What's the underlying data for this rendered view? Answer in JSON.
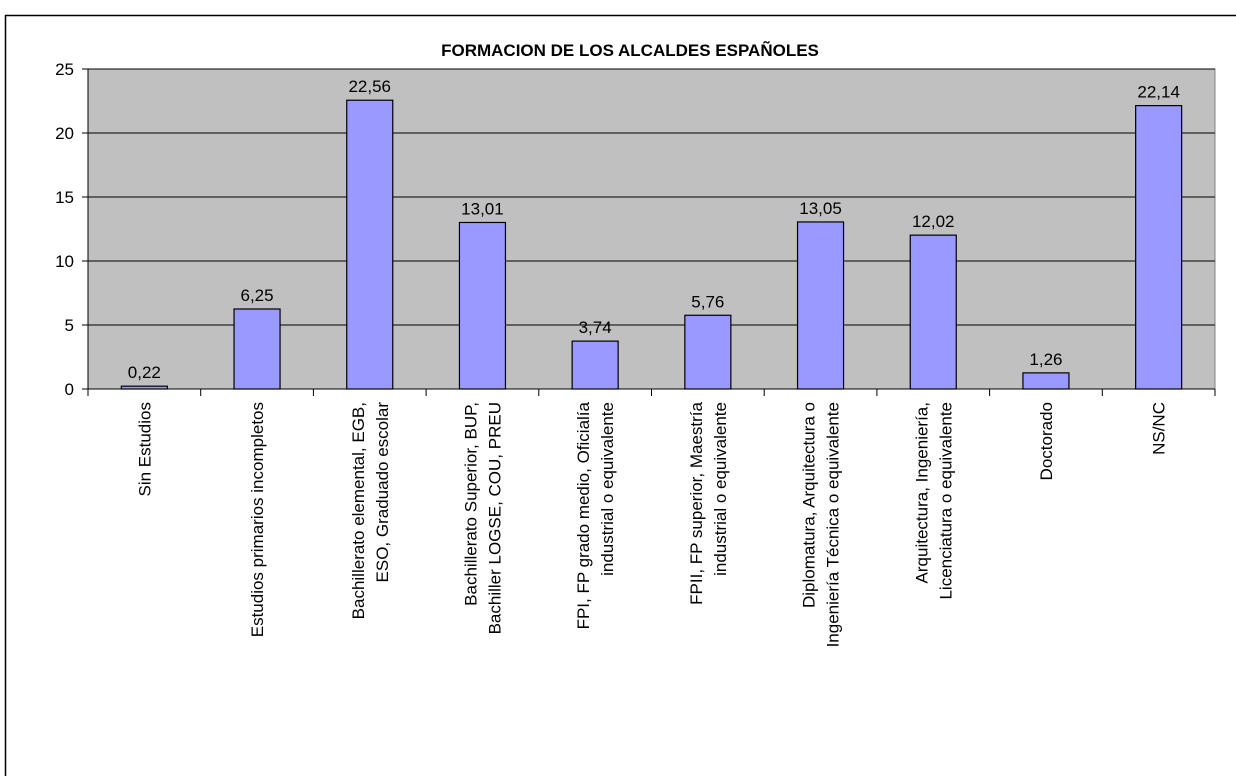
{
  "chart_data": {
    "type": "bar",
    "title": "FORMACION DE LOS ALCALDES ESPAÑOLES",
    "categories": [
      "Sin Estudios",
      "Estudios primarios incompletos",
      "Bachillerato elemental, EGB,\nESO, Graduado escolar",
      "Bachillerato Superior,    BUP,\nBachiller LOGSE, COU, PREU",
      "FPI, FP grado medio, Oficialía\nindustrial o equivalente",
      "FPII, FP superior, Maestría\nindustrial o equivalente",
      "Diplomatura, Arquitectura o\nIngeniería Técnica o equivalente",
      "Arquitectura, Ingeniería,\nLicenciatura o equivalente",
      "Doctorado",
      "NS/NC"
    ],
    "values": [
      0.22,
      6.25,
      22.56,
      13.01,
      3.74,
      5.76,
      13.05,
      12.02,
      1.26,
      22.14
    ],
    "value_labels": [
      "0,22",
      "6,25",
      "22,56",
      "13,01",
      "3,74",
      "5,76",
      "13,05",
      "12,02",
      "1,26",
      "22,14"
    ],
    "color": "#9999ff",
    "ylim": [
      0,
      25
    ],
    "yticks": [
      0,
      5,
      10,
      15,
      20,
      25
    ],
    "grid": true
  }
}
